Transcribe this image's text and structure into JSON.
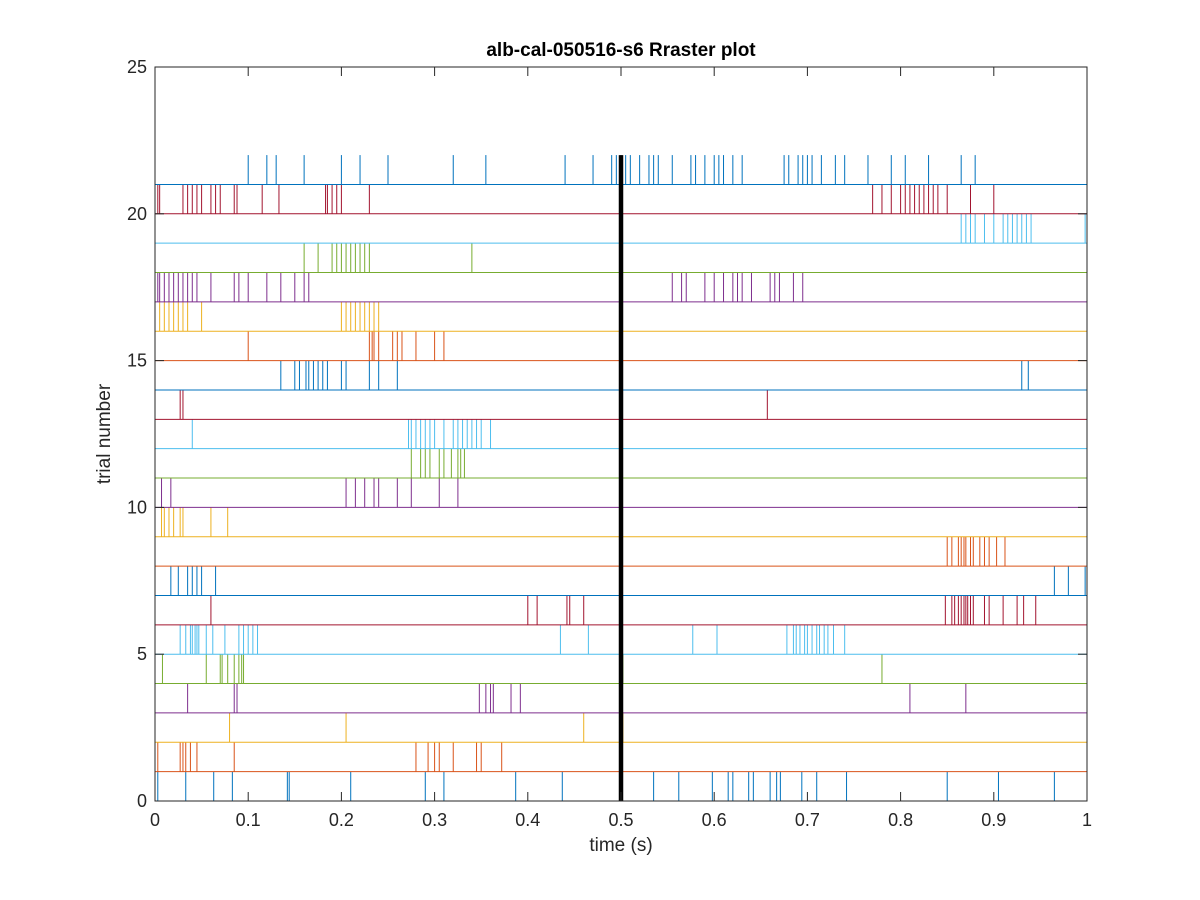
{
  "chart_data": {
    "type": "raster",
    "title": "alb-cal-050516-s6 Rraster plot",
    "xlabel": "time (s)",
    "ylabel": "trial number",
    "xlim": [
      0,
      1
    ],
    "ylim": [
      0,
      25
    ],
    "x_ticks": [
      "0",
      "0.1",
      "0.2",
      "0.3",
      "0.4",
      "0.5",
      "0.6",
      "0.7",
      "0.8",
      "0.9",
      "1"
    ],
    "y_ticks": [
      "0",
      "5",
      "10",
      "15",
      "20",
      "25"
    ],
    "grid": false,
    "event_marker": {
      "x": 0.5,
      "y_from": 0,
      "y_to": 22,
      "color": "#000000"
    },
    "trials": [
      {
        "trial": 1,
        "color": "#0072BD",
        "spikes": [
          0.003,
          0.033,
          0.063,
          0.083,
          0.142,
          0.144,
          0.21,
          0.29,
          0.31,
          0.387,
          0.437,
          0.535,
          0.562,
          0.598,
          0.615,
          0.62,
          0.637,
          0.642,
          0.66,
          0.667,
          0.671,
          0.694,
          0.71,
          0.742,
          0.85,
          0.905,
          0.965
        ]
      },
      {
        "trial": 2,
        "color": "#D95319",
        "spikes": [
          0.003,
          0.027,
          0.03,
          0.033,
          0.038,
          0.045,
          0.085,
          0.28,
          0.293,
          0.3,
          0.305,
          0.32,
          0.345,
          0.35,
          0.372
        ]
      },
      {
        "trial": 3,
        "color": "#EDB120",
        "spikes": [
          0.08,
          0.205,
          0.46,
          0.502
        ]
      },
      {
        "trial": 4,
        "color": "#7E2F8E",
        "spikes": [
          0.035,
          0.085,
          0.088,
          0.348,
          0.355,
          0.36,
          0.363,
          0.382,
          0.392,
          0.81,
          0.87
        ]
      },
      {
        "trial": 5,
        "color": "#77AC30",
        "spikes": [
          0.008,
          0.055,
          0.07,
          0.072,
          0.078,
          0.085,
          0.09,
          0.093,
          0.095,
          0.502,
          0.78
        ]
      },
      {
        "trial": 6,
        "color": "#4DBEEE",
        "spikes": [
          0.027,
          0.033,
          0.038,
          0.04,
          0.043,
          0.045,
          0.047,
          0.055,
          0.062,
          0.075,
          0.09,
          0.095,
          0.1,
          0.105,
          0.11,
          0.435,
          0.465,
          0.577,
          0.603,
          0.678,
          0.685,
          0.688,
          0.692,
          0.697,
          0.7,
          0.705,
          0.71,
          0.713,
          0.718,
          0.722,
          0.728,
          0.74
        ]
      },
      {
        "trial": 7,
        "color": "#A2142F",
        "spikes": [
          0.06,
          0.4,
          0.41,
          0.442,
          0.445,
          0.46,
          0.5,
          0.848,
          0.855,
          0.858,
          0.862,
          0.865,
          0.868,
          0.87,
          0.872,
          0.875,
          0.878,
          0.89,
          0.895,
          0.91,
          0.925,
          0.932,
          0.945
        ]
      },
      {
        "trial": 8,
        "color": "#0072BD",
        "spikes": [
          0.017,
          0.025,
          0.035,
          0.04,
          0.045,
          0.05,
          0.065,
          0.965,
          0.98,
          0.998
        ]
      },
      {
        "trial": 9,
        "color": "#D95319",
        "spikes": [
          0.85,
          0.855,
          0.862,
          0.865,
          0.868,
          0.87,
          0.875,
          0.878,
          0.885,
          0.89,
          0.895,
          0.903,
          0.912
        ]
      },
      {
        "trial": 10,
        "color": "#EDB120",
        "spikes": [
          0.007,
          0.01,
          0.015,
          0.02,
          0.027,
          0.03,
          0.06,
          0.078
        ]
      },
      {
        "trial": 11,
        "color": "#7E2F8E",
        "spikes": [
          0.007,
          0.017,
          0.205,
          0.215,
          0.225,
          0.235,
          0.24,
          0.26,
          0.275,
          0.305,
          0.325
        ]
      },
      {
        "trial": 12,
        "color": "#77AC30",
        "spikes": [
          0.275,
          0.285,
          0.29,
          0.295,
          0.305,
          0.31,
          0.318,
          0.325,
          0.328,
          0.332
        ]
      },
      {
        "trial": 13,
        "color": "#4DBEEE",
        "spikes": [
          0.04,
          0.272,
          0.275,
          0.28,
          0.285,
          0.29,
          0.295,
          0.3,
          0.31,
          0.32,
          0.325,
          0.33,
          0.335,
          0.34,
          0.345,
          0.35,
          0.36,
          0.5
        ]
      },
      {
        "trial": 14,
        "color": "#A2142F",
        "spikes": [
          0.027,
          0.03,
          0.657
        ]
      },
      {
        "trial": 15,
        "color": "#0072BD",
        "spikes": [
          0.135,
          0.15,
          0.155,
          0.162,
          0.165,
          0.17,
          0.175,
          0.18,
          0.185,
          0.2,
          0.205,
          0.23,
          0.24,
          0.26,
          0.93,
          0.937
        ]
      },
      {
        "trial": 16,
        "color": "#D95319",
        "spikes": [
          0.1,
          0.23,
          0.233,
          0.235,
          0.24,
          0.255,
          0.26,
          0.265,
          0.28,
          0.3,
          0.31
        ]
      },
      {
        "trial": 17,
        "color": "#EDB120",
        "spikes": [
          0.005,
          0.01,
          0.015,
          0.02,
          0.025,
          0.03,
          0.035,
          0.05,
          0.2,
          0.205,
          0.21,
          0.215,
          0.22,
          0.225,
          0.23,
          0.235,
          0.24
        ]
      },
      {
        "trial": 18,
        "color": "#7E2F8E",
        "spikes": [
          0.003,
          0.005,
          0.01,
          0.015,
          0.02,
          0.025,
          0.03,
          0.035,
          0.04,
          0.045,
          0.06,
          0.085,
          0.09,
          0.1,
          0.12,
          0.135,
          0.15,
          0.16,
          0.165,
          0.555,
          0.565,
          0.57,
          0.59,
          0.6,
          0.61,
          0.62,
          0.625,
          0.63,
          0.64,
          0.66,
          0.665,
          0.67,
          0.685,
          0.695
        ]
      },
      {
        "trial": 19,
        "color": "#77AC30",
        "spikes": [
          0.16,
          0.175,
          0.19,
          0.195,
          0.2,
          0.205,
          0.21,
          0.215,
          0.22,
          0.225,
          0.23,
          0.34
        ]
      },
      {
        "trial": 20,
        "color": "#4DBEEE",
        "spikes": [
          0.865,
          0.87,
          0.875,
          0.88,
          0.89,
          0.9,
          0.91,
          0.915,
          0.92,
          0.925,
          0.93,
          0.935,
          0.94,
          0.998
        ]
      },
      {
        "trial": 21,
        "color": "#A2142F",
        "spikes": [
          0.003,
          0.005,
          0.03,
          0.035,
          0.04,
          0.045,
          0.05,
          0.06,
          0.065,
          0.07,
          0.085,
          0.088,
          0.115,
          0.133,
          0.183,
          0.185,
          0.19,
          0.195,
          0.2,
          0.23,
          0.77,
          0.78,
          0.79,
          0.8,
          0.805,
          0.81,
          0.815,
          0.82,
          0.825,
          0.83,
          0.835,
          0.84,
          0.85,
          0.875,
          0.9
        ]
      },
      {
        "trial": 22,
        "color": "#0072BD",
        "spikes": [
          0.1,
          0.12,
          0.13,
          0.16,
          0.2,
          0.22,
          0.25,
          0.32,
          0.355,
          0.44,
          0.47,
          0.49,
          0.495,
          0.5,
          0.505,
          0.51,
          0.52,
          0.53,
          0.535,
          0.54,
          0.555,
          0.575,
          0.58,
          0.59,
          0.6,
          0.605,
          0.61,
          0.62,
          0.63,
          0.675,
          0.68,
          0.69,
          0.695,
          0.7,
          0.705,
          0.715,
          0.73,
          0.74,
          0.765,
          0.79,
          0.805,
          0.83,
          0.865,
          0.88
        ]
      }
    ]
  }
}
